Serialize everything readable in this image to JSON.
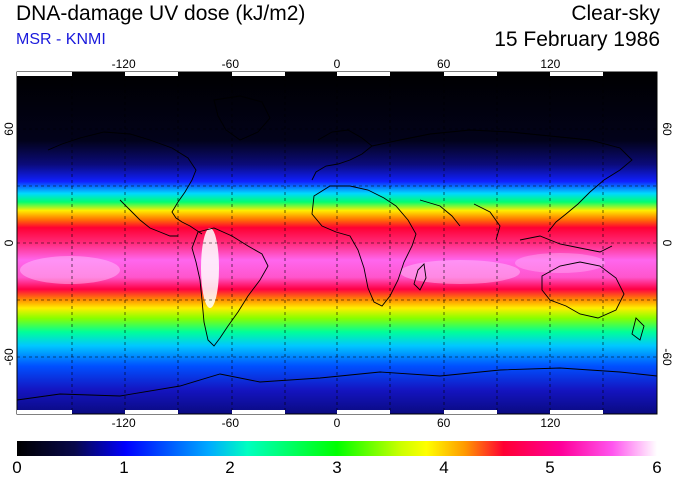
{
  "header": {
    "title": "DNA-damage UV dose (kJ/m2)",
    "subtitle": "MSR - KNMI",
    "condition": "Clear-sky",
    "date": "15 February 1986"
  },
  "map": {
    "projection": "equirectangular",
    "lon_range": [
      -180,
      180
    ],
    "lat_range": [
      -90,
      90
    ],
    "grid": true,
    "grid_style": "dashed",
    "lon_ticks": [
      -120,
      -60,
      0,
      60,
      120
    ],
    "lon_tick_labels": [
      "-120",
      "-60",
      "0",
      "60",
      "120"
    ],
    "lat_ticks": [
      60,
      0,
      -60
    ],
    "lat_tick_labels": [
      "60",
      "0",
      "-60"
    ]
  },
  "colorbar": {
    "min": 0,
    "max": 6,
    "tick_labels": [
      "0",
      "1",
      "2",
      "3",
      "4",
      "5",
      "6"
    ],
    "colors": [
      "#000000",
      "#0a0a6e",
      "#0000ff",
      "#00c8ff",
      "#00ffc8",
      "#00ff00",
      "#c8ff00",
      "#ffff00",
      "#ff9900",
      "#ff0033",
      "#ff00cc",
      "#ffffff"
    ]
  }
}
